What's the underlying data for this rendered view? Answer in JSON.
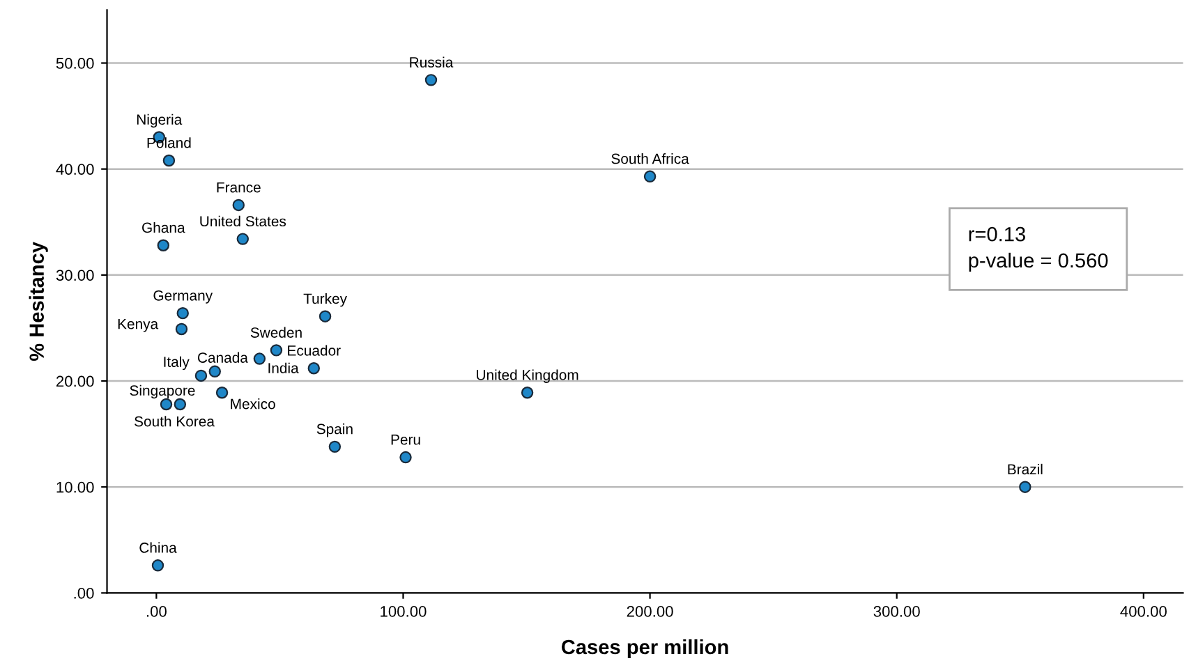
{
  "chart_data": {
    "type": "scatter",
    "xlabel": "Cases per million",
    "ylabel": "% Hesitancy",
    "x": [
      111.3,
      1.1,
      5.1,
      200,
      33.3,
      35,
      2.8,
      10.7,
      68.4,
      10.2,
      48.6,
      41.8,
      63.8,
      23.7,
      18.1,
      150.3,
      26.6,
      4,
      9.6,
      72.3,
      101,
      352,
      0.6
    ],
    "series": [
      {
        "color": "#1f87c8",
        "values": [
          48.4,
          43.0,
          40.8,
          39.3,
          36.6,
          33.4,
          32.8,
          26.4,
          26.1,
          24.9,
          22.9,
          22.1,
          21.2,
          20.9,
          20.5,
          18.9,
          18.9,
          17.8,
          17.8,
          13.8,
          12.8,
          10.0,
          2.6
        ]
      }
    ],
    "marker": "circle",
    "grid": "y",
    "xlim": [
      -20,
      416
    ],
    "ylim": [
      0,
      55
    ],
    "xticks": [
      {
        "value": 0,
        "label": ".00"
      },
      {
        "value": 100,
        "label": "100.00"
      },
      {
        "value": 200,
        "label": "200.00"
      },
      {
        "value": 300,
        "label": "300.00"
      },
      {
        "value": 400,
        "label": "400.00"
      }
    ],
    "yticks": [
      {
        "value": 0,
        "label": ".00"
      },
      {
        "value": 10,
        "label": "10.00"
      },
      {
        "value": 20,
        "label": "20.00"
      },
      {
        "value": 30,
        "label": "30.00"
      },
      {
        "value": 40,
        "label": "40.00"
      },
      {
        "value": 50,
        "label": "50.00"
      }
    ],
    "annotations": [
      {
        "text": "Russia",
        "x": 111.3,
        "y": 48.4
      },
      {
        "text": "Nigeria",
        "x": 1.1,
        "y": 43.0
      },
      {
        "text": "Poland",
        "x": 5.1,
        "y": 40.8
      },
      {
        "text": "South Africa",
        "x": 200,
        "y": 39.3
      },
      {
        "text": "France",
        "x": 33.3,
        "y": 36.6
      },
      {
        "text": "United States",
        "x": 35,
        "y": 33.4
      },
      {
        "text": "Ghana",
        "x": 2.8,
        "y": 32.8
      },
      {
        "text": "Germany",
        "x": 10.7,
        "y": 26.4
      },
      {
        "text": "Turkey",
        "x": 68.4,
        "y": 26.1
      },
      {
        "text": "Kenya",
        "x": 10.2,
        "y": 24.9
      },
      {
        "text": "Sweden",
        "x": 48.6,
        "y": 22.9
      },
      {
        "text": "India",
        "x": 41.8,
        "y": 22.1
      },
      {
        "text": "Ecuador",
        "x": 63.8,
        "y": 21.2
      },
      {
        "text": "Canada",
        "x": 23.7,
        "y": 20.9
      },
      {
        "text": "Italy",
        "x": 18.1,
        "y": 20.5
      },
      {
        "text": "United Kingdom",
        "x": 150.3,
        "y": 18.9
      },
      {
        "text": "Mexico",
        "x": 26.6,
        "y": 18.9
      },
      {
        "text": "Singapore",
        "x": 4,
        "y": 17.8
      },
      {
        "text": "South Korea",
        "x": 9.6,
        "y": 17.8
      },
      {
        "text": "Spain",
        "x": 72.3,
        "y": 13.8
      },
      {
        "text": "Peru",
        "x": 101,
        "y": 12.8
      },
      {
        "text": "Brazil",
        "x": 352,
        "y": 10.0
      },
      {
        "text": "China",
        "x": 0.6,
        "y": 2.6
      },
      "r=0.13\np-value = 0.560"
    ]
  }
}
